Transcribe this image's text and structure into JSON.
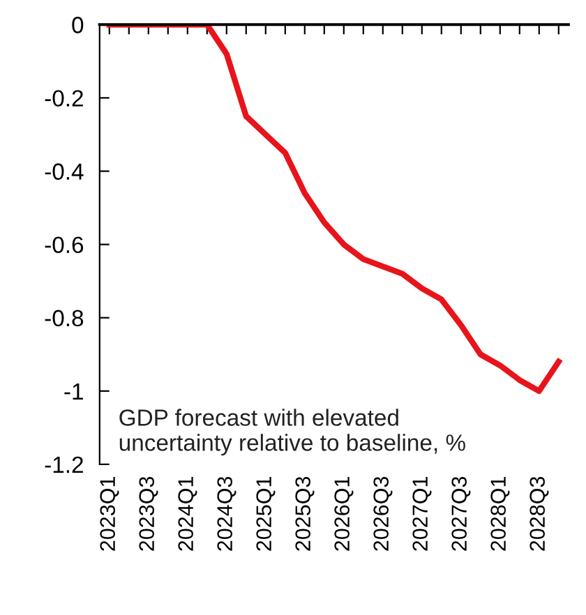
{
  "chart_data": {
    "type": "line",
    "categories": [
      "2023Q1",
      null,
      "2023Q3",
      null,
      "2024Q1",
      null,
      "2024Q3",
      null,
      "2025Q1",
      null,
      "2025Q3",
      null,
      "2026Q1",
      null,
      "2026Q3",
      null,
      "2027Q1",
      null,
      "2027Q3",
      null,
      "2028Q1",
      null,
      "2028Q3",
      null
    ],
    "series": [
      {
        "color": "#e8141b",
        "values": [
          0,
          0,
          0,
          0,
          0,
          0,
          -0.08,
          -0.25,
          -0.3,
          -0.35,
          -0.46,
          -0.54,
          -0.6,
          -0.64,
          -0.66,
          -0.68,
          -0.72,
          -0.75,
          -0.82,
          -0.9,
          -0.93,
          -0.97,
          -1.0,
          -0.92
        ]
      }
    ],
    "ylim": [
      -1.2,
      0
    ],
    "yticks": [
      0,
      -0.2,
      -0.4,
      -0.6,
      -0.8,
      -1,
      -1.2
    ],
    "annotations": [
      "GDP forecast with elevated\nuncertainty relative to baseline, %"
    ],
    "grid": false,
    "legend": false,
    "marker": "none",
    "line_style": "solid"
  }
}
